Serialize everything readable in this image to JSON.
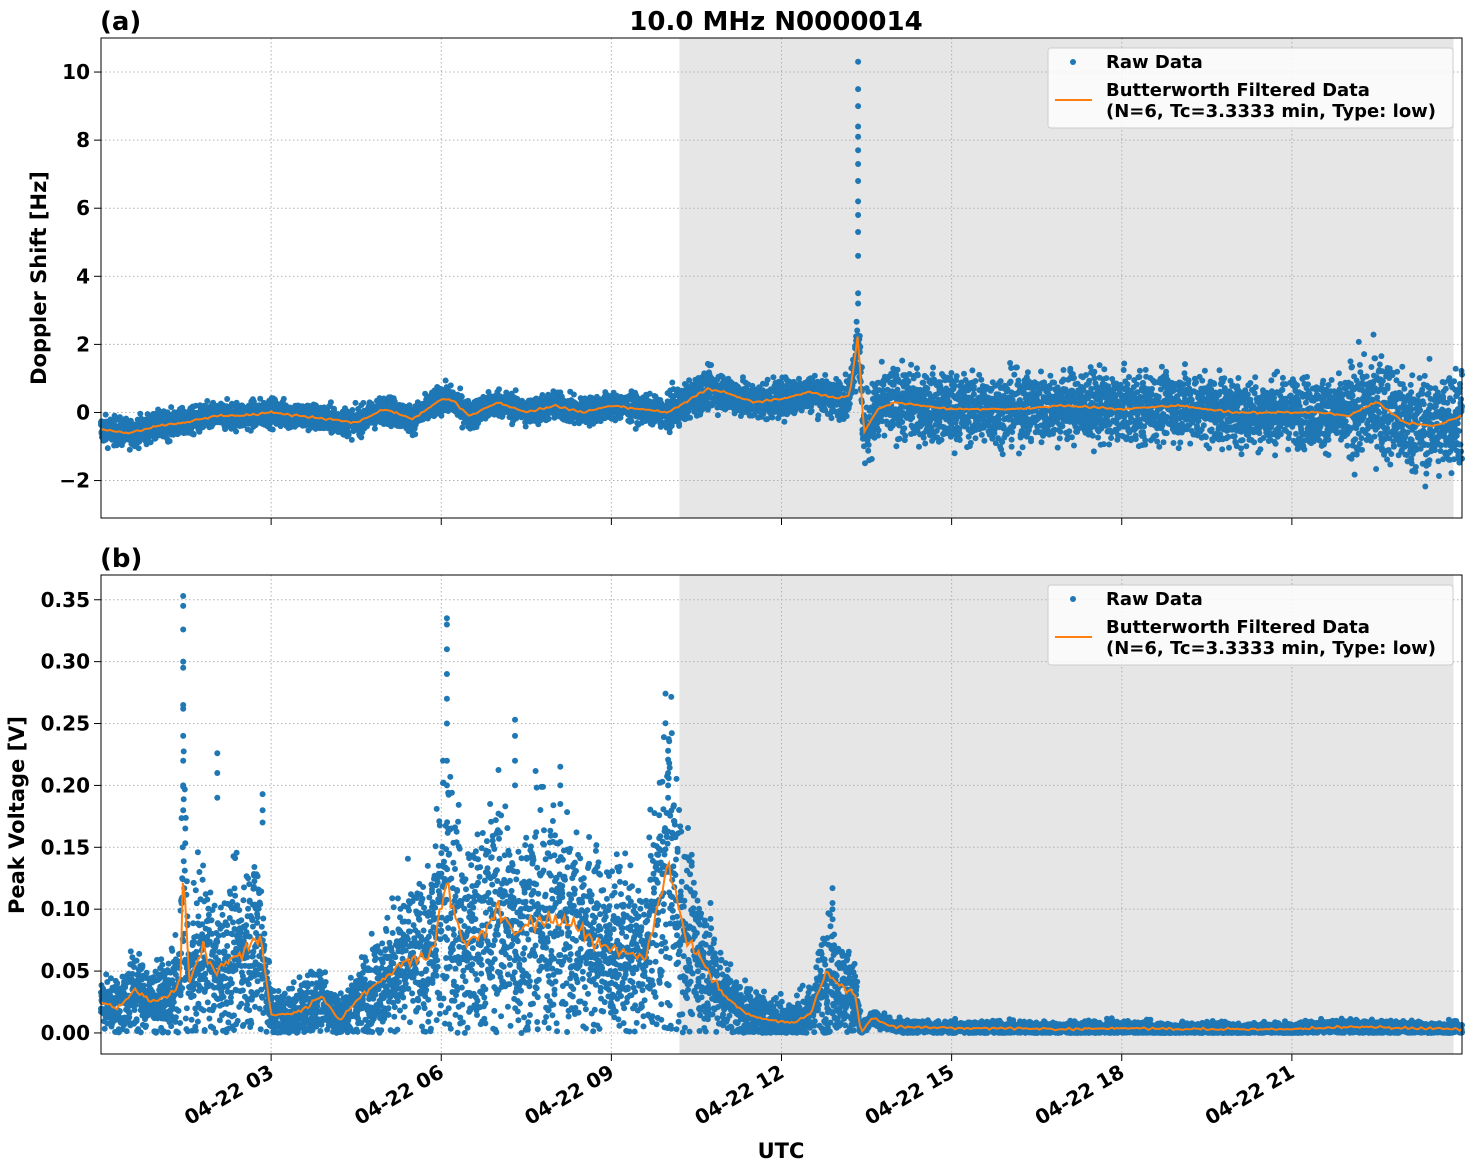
{
  "figure": {
    "title": "10.0 MHz N0000014",
    "xlabel": "UTC",
    "x_tick_labels": [
      "04-22 03",
      "04-22 06",
      "04-22 09",
      "04-22 12",
      "04-22 15",
      "04-22 18",
      "04-22 21"
    ],
    "night_shading": {
      "start_hour": 10.2,
      "end_hour": 23.85,
      "color": "#e6e6e6"
    },
    "colors": {
      "raw": "#1f77b4",
      "filtered": "#ff7f0e"
    }
  },
  "legend": {
    "raw_label": "Raw Data",
    "filtered_label_line1": "Butterworth Filtered Data",
    "filtered_label_line2": "(N=6, Tc=3.3333 min, Type: low)"
  },
  "chart_data": [
    {
      "panel_label": "(a)",
      "type": "scatter",
      "title": "10.0 MHz N0000014",
      "ylabel": "Doppler Shift [Hz]",
      "xlim": [
        "04-22 00:00",
        "04-23 00:00"
      ],
      "ylim": [
        -3.1,
        11.0
      ],
      "y_ticks": [
        -2,
        0,
        2,
        4,
        6,
        8,
        10
      ],
      "y_tick_labels": [
        "−2",
        "0",
        "2",
        "4",
        "6",
        "8",
        "10"
      ],
      "grid": true,
      "legend_position": "top-right",
      "series": [
        {
          "name": "Butterworth Filtered Data",
          "style": "line",
          "x_hours": [
            0,
            0.5,
            1.0,
            1.5,
            2.0,
            2.5,
            3.0,
            3.5,
            4.0,
            4.5,
            5.0,
            5.5,
            6.0,
            6.2,
            6.5,
            7.0,
            7.5,
            8.0,
            8.5,
            9.0,
            9.5,
            10.0,
            10.3,
            10.7,
            11.0,
            11.5,
            12.0,
            12.5,
            13.0,
            13.2,
            13.35,
            13.45,
            13.7,
            14.0,
            15.0,
            16.0,
            17.0,
            18.0,
            19.0,
            20.0,
            21.0,
            21.5,
            22.0,
            22.5,
            23.0,
            23.5,
            24.0
          ],
          "values": [
            -0.5,
            -0.6,
            -0.4,
            -0.3,
            -0.1,
            -0.1,
            0.0,
            -0.1,
            -0.2,
            -0.3,
            0.1,
            -0.2,
            0.4,
            0.35,
            -0.1,
            0.3,
            0.0,
            0.2,
            0.0,
            0.2,
            0.1,
            0.0,
            0.3,
            0.7,
            0.6,
            0.3,
            0.4,
            0.6,
            0.4,
            0.5,
            2.3,
            -0.6,
            0.1,
            0.3,
            0.1,
            0.1,
            0.2,
            0.1,
            0.2,
            0.0,
            0.0,
            0.0,
            -0.1,
            0.3,
            -0.3,
            -0.4,
            -0.1
          ]
        },
        {
          "name": "Raw Data",
          "style": "markers",
          "spike_points": [
            {
              "x_hour": 13.35,
              "values": [
                10.3,
                9.5,
                9.0,
                8.4,
                8.1,
                7.7,
                7.3,
                6.8,
                6.2,
                5.8,
                5.3,
                4.6,
                3.5,
                3.2
              ]
            }
          ]
        }
      ]
    },
    {
      "panel_label": "(b)",
      "type": "scatter",
      "ylabel": "Peak Voltage [V]",
      "xlim": [
        "04-22 00:00",
        "04-23 00:00"
      ],
      "ylim": [
        -0.017,
        0.37
      ],
      "y_ticks": [
        0.0,
        0.05,
        0.1,
        0.15,
        0.2,
        0.25,
        0.3,
        0.35
      ],
      "y_tick_labels": [
        "0.00",
        "0.05",
        "0.10",
        "0.15",
        "0.20",
        "0.25",
        "0.30",
        "0.35"
      ],
      "grid": true,
      "legend_position": "top-right",
      "series": [
        {
          "name": "Butterworth Filtered Data",
          "style": "line",
          "x_hours": [
            0,
            0.3,
            0.6,
            0.9,
            1.2,
            1.4,
            1.45,
            1.55,
            1.8,
            2.0,
            2.3,
            2.6,
            2.8,
            3.0,
            3.3,
            3.6,
            3.9,
            4.2,
            4.6,
            5.0,
            5.4,
            5.8,
            6.1,
            6.4,
            6.7,
            7.0,
            7.3,
            7.6,
            8.0,
            8.4,
            8.8,
            9.2,
            9.6,
            10.0,
            10.3,
            10.7,
            11.0,
            11.4,
            11.8,
            12.2,
            12.5,
            12.8,
            13.0,
            13.3,
            13.4,
            13.6,
            14.0,
            15.0,
            16.0,
            17.0,
            18.0,
            19.0,
            20.0,
            21.0,
            22.0,
            23.0,
            24.0
          ],
          "values": [
            0.025,
            0.02,
            0.035,
            0.025,
            0.03,
            0.04,
            0.14,
            0.04,
            0.07,
            0.05,
            0.06,
            0.07,
            0.08,
            0.015,
            0.015,
            0.02,
            0.03,
            0.01,
            0.03,
            0.045,
            0.06,
            0.06,
            0.12,
            0.07,
            0.08,
            0.1,
            0.08,
            0.09,
            0.09,
            0.085,
            0.07,
            0.065,
            0.06,
            0.14,
            0.08,
            0.05,
            0.03,
            0.015,
            0.01,
            0.008,
            0.015,
            0.05,
            0.04,
            0.03,
            0.0,
            0.012,
            0.005,
            0.004,
            0.004,
            0.003,
            0.004,
            0.003,
            0.003,
            0.003,
            0.005,
            0.004,
            0.003
          ]
        },
        {
          "name": "Raw Data",
          "style": "markers",
          "peak_points": [
            {
              "x_hour": 1.45,
              "values": [
                0.353,
                0.345,
                0.326,
                0.3,
                0.295,
                0.265,
                0.24,
                0.22,
                0.2,
                0.18
              ]
            },
            {
              "x_hour": 2.05,
              "values": [
                0.226,
                0.21,
                0.19
              ]
            },
            {
              "x_hour": 2.85,
              "values": [
                0.193,
                0.18,
                0.17
              ]
            },
            {
              "x_hour": 6.1,
              "values": [
                0.335,
                0.33,
                0.31,
                0.29,
                0.27,
                0.25,
                0.22,
                0.2
              ]
            },
            {
              "x_hour": 7.3,
              "values": [
                0.253,
                0.24,
                0.22,
                0.2
              ]
            },
            {
              "x_hour": 8.1,
              "values": [
                0.215,
                0.2,
                0.185
              ]
            },
            {
              "x_hour": 10.0,
              "values": [
                0.228,
                0.21,
                0.2,
                0.19
              ]
            },
            {
              "x_hour": 12.9,
              "values": [
                0.117,
                0.105,
                0.1
              ]
            }
          ]
        }
      ]
    }
  ]
}
